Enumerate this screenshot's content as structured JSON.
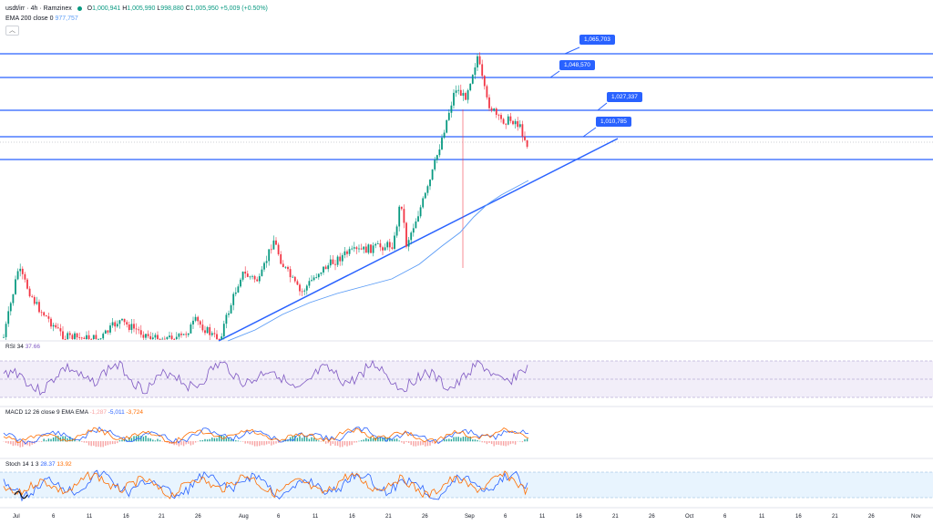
{
  "header": {
    "symbol": "usdt/irr · 4h · Ramzinex",
    "open_label": "O",
    "open": "1,000,941",
    "high_label": "H",
    "high": "1,005,990",
    "low_label": "L",
    "low": "998,880",
    "close_label": "C",
    "close": "1,005,950",
    "change": "+5,009 (+0.50%)",
    "status_color": "#089981"
  },
  "ema": {
    "label": "EMA 200 close 0",
    "value": "977,757",
    "color": "#5b9cf6"
  },
  "collapse_icon": "chevron-up-icon",
  "price_tags": [
    "1,065,703",
    "1,048,570",
    "1,027,337",
    "1,010,785"
  ],
  "rsi": {
    "label": "RSI 34",
    "value": "37.66",
    "color": "#7e57c2"
  },
  "macd": {
    "label": "MACD 12 26 close 9 EMA EMA",
    "hist": "-1,287",
    "macd": "-5,011",
    "signal": "-3,724"
  },
  "stoch": {
    "label": "Stoch 14 1 3",
    "k": "28.37",
    "d": "13.92"
  },
  "xaxis": [
    "Jul",
    "6",
    "11",
    "16",
    "21",
    "26",
    "Aug",
    "6",
    "11",
    "16",
    "21",
    "26",
    "Sep",
    "6",
    "11",
    "16",
    "21",
    "26",
    "Oct",
    "6",
    "11",
    "16",
    "21",
    "26",
    "Nov"
  ],
  "colors": {
    "up": "#089981",
    "down": "#f23645",
    "line": "#2962ff"
  }
}
